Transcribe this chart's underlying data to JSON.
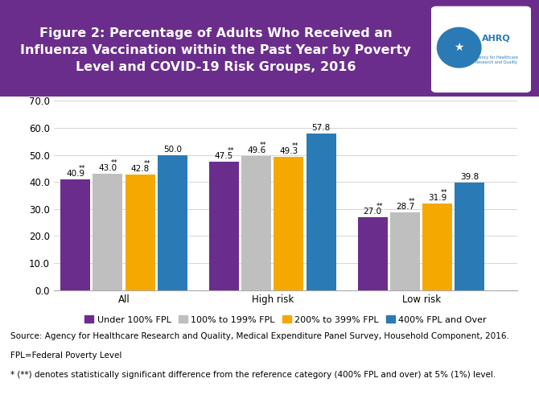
{
  "title_line1": "Figure 2: Percentage of Adults Who Received an",
  "title_line2": "Influenza Vaccination within the Past Year by Poverty",
  "title_line3": "Level and COVID-19 Risk Groups, 2016",
  "title_bg_color": "#6b2d8b",
  "title_text_color": "#ffffff",
  "groups": [
    "All",
    "High risk",
    "Low risk"
  ],
  "series": [
    {
      "label": "Under 100% FPL",
      "color": "#6b2d8b",
      "values": [
        40.9,
        47.5,
        27.0
      ],
      "annotations": [
        "40.9**",
        "47.5**",
        "27.0**"
      ]
    },
    {
      "label": "100% to 199% FPL",
      "color": "#c0bfbf",
      "values": [
        43.0,
        49.6,
        28.7
      ],
      "annotations": [
        "43.0**",
        "49.6**",
        "28.7**"
      ]
    },
    {
      "label": "200% to 399% FPL",
      "color": "#f5a800",
      "values": [
        42.8,
        49.3,
        31.9
      ],
      "annotations": [
        "42.8**",
        "49.3**",
        "31.9**"
      ]
    },
    {
      "label": "400% FPL and Over",
      "color": "#2a7ab5",
      "values": [
        50.0,
        57.8,
        39.8
      ],
      "annotations": [
        "50.0",
        "57.8",
        "39.8"
      ]
    }
  ],
  "ylim": [
    0,
    70
  ],
  "yticks": [
    0.0,
    10.0,
    20.0,
    30.0,
    40.0,
    50.0,
    60.0,
    70.0
  ],
  "footnote1": "Source: Agency for Healthcare Research and Quality, Medical Expenditure Panel Survey, Household Component, 2016.",
  "footnote2": "FPL=Federal Poverty Level",
  "footnote3": "* (**) denotes statistically significant difference from the reference category (400% FPL and over) at 5% (1%) level.",
  "bar_width": 0.17,
  "fig_bg_color": "#ffffff",
  "grid_color": "#d5d5d5",
  "font_size_annotation": 7.5,
  "font_size_axis": 8.5,
  "font_size_legend": 8.0,
  "font_size_footnote": 7.5,
  "font_size_title": 11.5
}
